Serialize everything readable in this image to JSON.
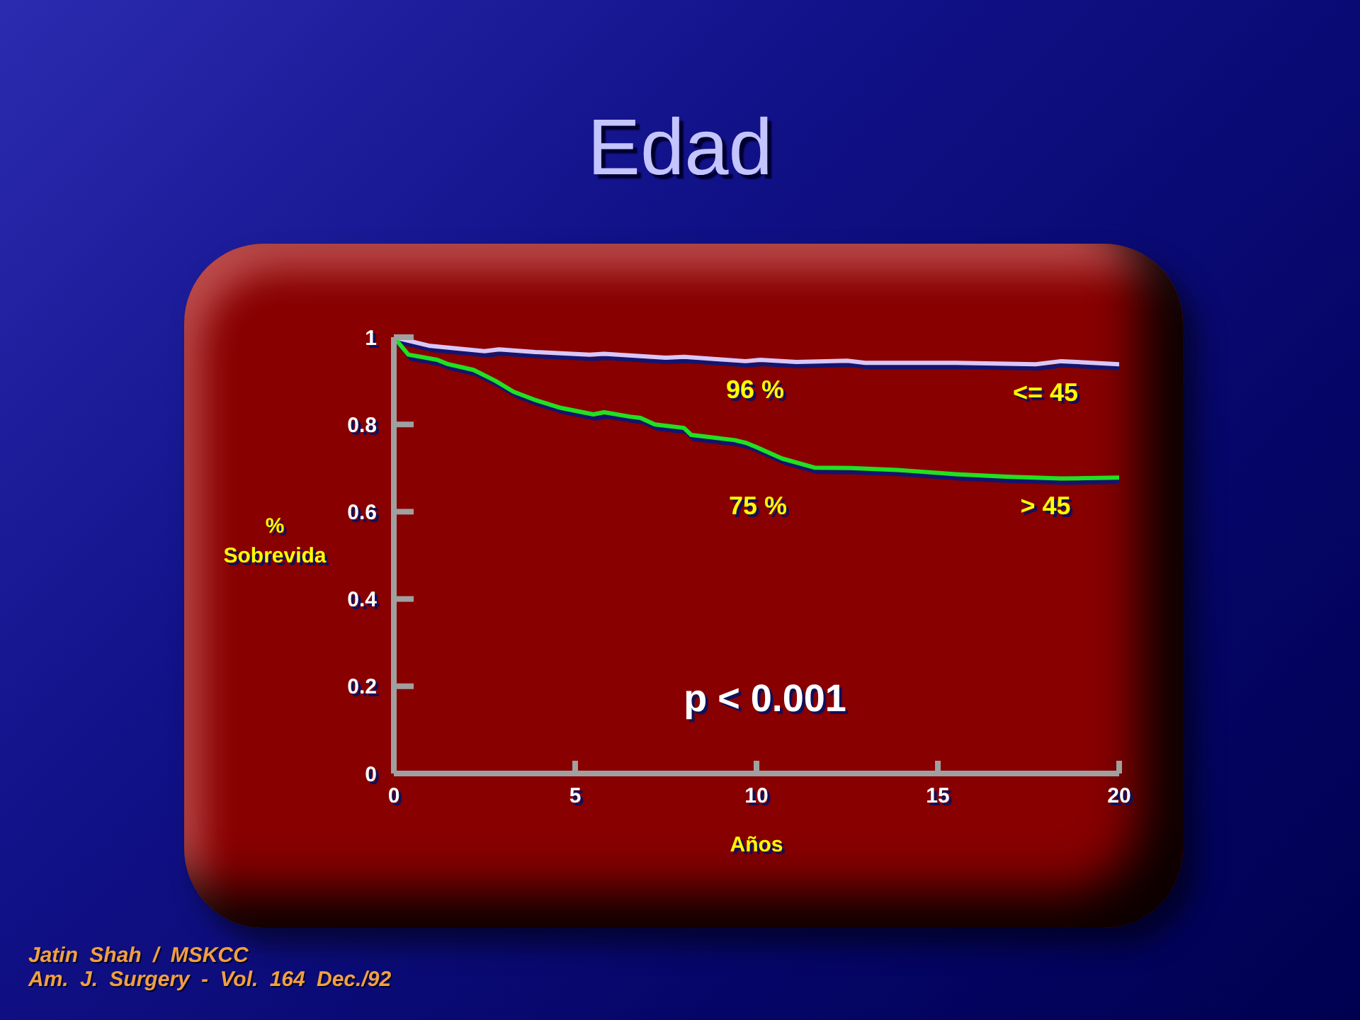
{
  "chart_data": {
    "type": "line",
    "title": "Edad",
    "xlabel": "Años",
    "ylabel": "% Sobrevida",
    "annotations": [
      "96 %",
      "75 %",
      "p < 0.001",
      "Jatin Shah / MSKCC",
      "Am. J. Surgery - Vol. 164 Dec./92"
    ],
    "xlim": [
      0,
      20
    ],
    "xticks": [
      0,
      5,
      10,
      15,
      20
    ],
    "ylim": [
      0,
      1
    ],
    "yticks": [
      0,
      0.2,
      0.4,
      0.6,
      0.8,
      1
    ],
    "series": [
      {
        "name": "<= 45",
        "color": "#d8c8f8",
        "x": [
          0,
          1.0,
          2.5,
          2.9,
          3.9,
          5.4,
          5.8,
          7.5,
          8.0,
          9.7,
          10.1,
          11.1,
          12.5,
          13.0,
          15.5,
          17.7,
          18.4,
          20
        ],
        "values": [
          1,
          0.98,
          0.968,
          0.972,
          0.966,
          0.96,
          0.962,
          0.953,
          0.955,
          0.945,
          0.948,
          0.943,
          0.946,
          0.941,
          0.941,
          0.938,
          0.945,
          0.938
        ]
      },
      {
        "name": "> 45",
        "color": "#22e022",
        "x": [
          0,
          0.4,
          1.2,
          1.5,
          2.2,
          2.8,
          3.3,
          3.9,
          4.6,
          5.5,
          5.8,
          6.5,
          6.8,
          7.2,
          8.0,
          8.2,
          9.4,
          9.7,
          10.0,
          10.7,
          11.6,
          12.6,
          14.0,
          15.5,
          16.9,
          18.4,
          20
        ],
        "values": [
          1,
          0.96,
          0.948,
          0.938,
          0.925,
          0.9,
          0.875,
          0.856,
          0.838,
          0.823,
          0.828,
          0.818,
          0.815,
          0.8,
          0.792,
          0.776,
          0.764,
          0.758,
          0.748,
          0.722,
          0.701,
          0.7,
          0.695,
          0.686,
          0.68,
          0.676,
          0.678
        ]
      }
    ]
  }
}
